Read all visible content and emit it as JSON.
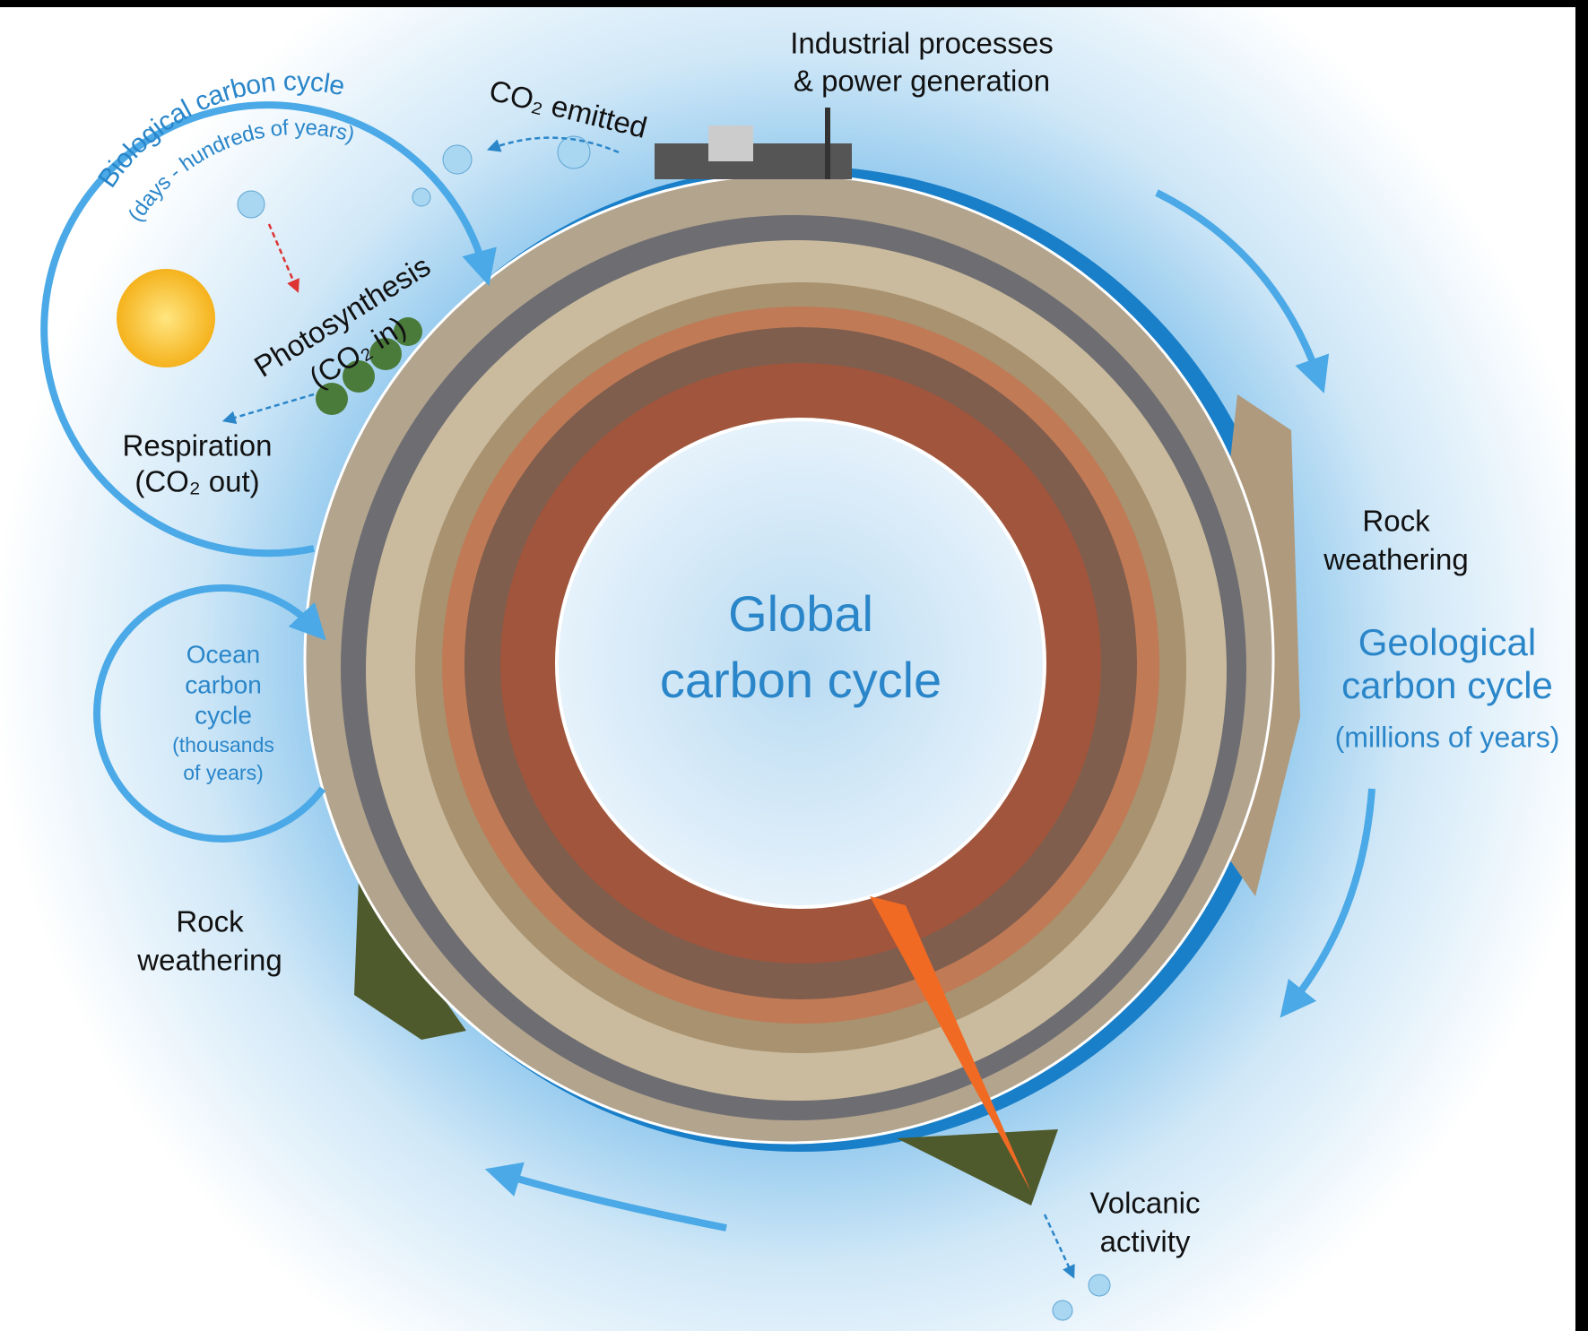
{
  "center": {
    "lines": [
      "Global",
      "carbon cycle"
    ]
  },
  "industry": {
    "lines": [
      "Industrial processes",
      "& power generation"
    ]
  },
  "emitted": "CO₂ emitted",
  "biological": {
    "title": "Biological carbon cycle",
    "subtitle": "(days - hundreds of years)"
  },
  "photosynthesis": {
    "lines": [
      "Photosynthesis",
      "(CO₂ in)"
    ]
  },
  "respiration": {
    "lines": [
      "Respiration",
      "(CO₂ out)"
    ]
  },
  "ocean": {
    "lines": [
      "Ocean",
      "carbon",
      "cycle",
      "(thousands",
      "of years)"
    ]
  },
  "weathering_right": {
    "lines": [
      "Rock",
      "weathering"
    ]
  },
  "weathering_left": {
    "lines": [
      "Rock",
      "weathering"
    ]
  },
  "geological": {
    "lines": [
      "Geological",
      "carbon cycle",
      "(millions of years)"
    ]
  },
  "volcanic": {
    "lines": [
      "Volcanic",
      "activity"
    ]
  }
}
